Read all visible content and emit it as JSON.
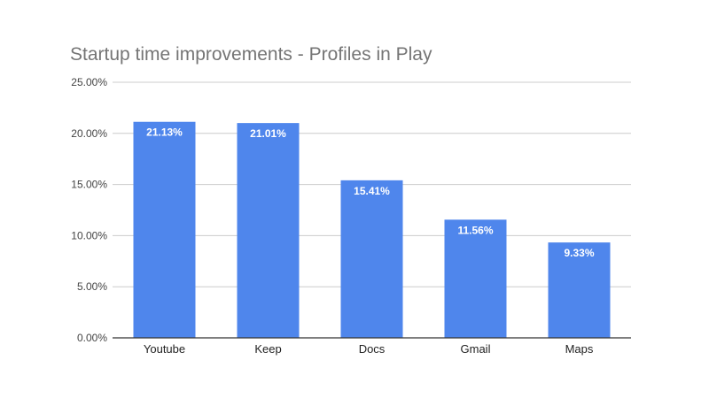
{
  "chart_data": {
    "type": "bar",
    "title": "Startup time improvements - Profiles in Play",
    "xlabel": "",
    "ylabel": "",
    "categories": [
      "Youtube",
      "Keep",
      "Docs",
      "Gmail",
      "Maps"
    ],
    "values": [
      21.13,
      21.01,
      15.41,
      11.56,
      9.33
    ],
    "data_labels": [
      "21.13%",
      "21.01%",
      "15.41%",
      "11.56%",
      "9.33%"
    ],
    "ylim": [
      0,
      25
    ],
    "y_ticks": [
      0,
      5,
      10,
      15,
      20,
      25
    ],
    "y_tick_labels": [
      "0.00%",
      "5.00%",
      "10.00%",
      "15.00%",
      "20.00%",
      "25.00%"
    ],
    "grid": true,
    "legend": "none",
    "bar_color": "#4f86ec",
    "grid_color": "#cccccc",
    "axis_color": "#333333"
  }
}
